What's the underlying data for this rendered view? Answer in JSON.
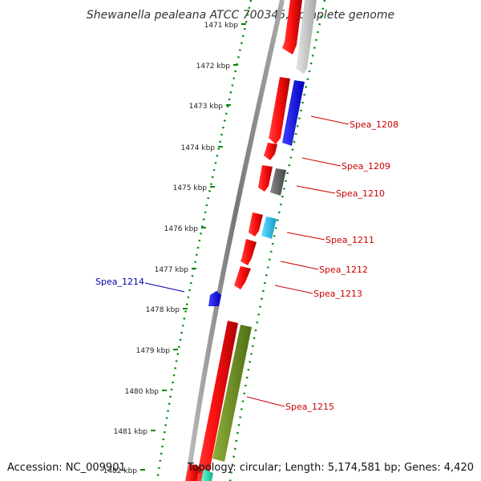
{
  "title": "Shewanella pealeana ATCC 700345, complete genome",
  "footer": {
    "accession": "Accession: NC_009901",
    "summary": "Topology: circular; Length: 5,174,581 bp; Genes: 4,420"
  },
  "axis": {
    "unit": "kbp",
    "ticks": [
      "1471 kbp",
      "1472 kbp",
      "1473 kbp",
      "1474 kbp",
      "1475 kbp",
      "1476 kbp",
      "1477 kbp",
      "1478 kbp",
      "1479 kbp",
      "1480 kbp",
      "1481 kbp",
      "1482 kbp"
    ]
  },
  "gene_labels": [
    {
      "name": "Spea_1208",
      "color": "#cc0000"
    },
    {
      "name": "Spea_1209",
      "color": "#cc0000"
    },
    {
      "name": "Spea_1210",
      "color": "#cc0000"
    },
    {
      "name": "Spea_1211",
      "color": "#cc0000"
    },
    {
      "name": "Spea_1212",
      "color": "#cc0000"
    },
    {
      "name": "Spea_1213",
      "color": "#cc0000"
    },
    {
      "name": "Spea_1214",
      "color": "#0000aa"
    },
    {
      "name": "Spea_1215",
      "color": "#cc0000"
    }
  ],
  "colors": {
    "cds_red": "#ff0000",
    "blue": "#0000ff",
    "light_gray": "#c8c8c8",
    "dark_gray": "#666666",
    "cyan": "#22bbee",
    "olive": "#6b8e23",
    "teal": "#20e0b0",
    "tick_green": "#008800",
    "backbone": "#888888"
  }
}
